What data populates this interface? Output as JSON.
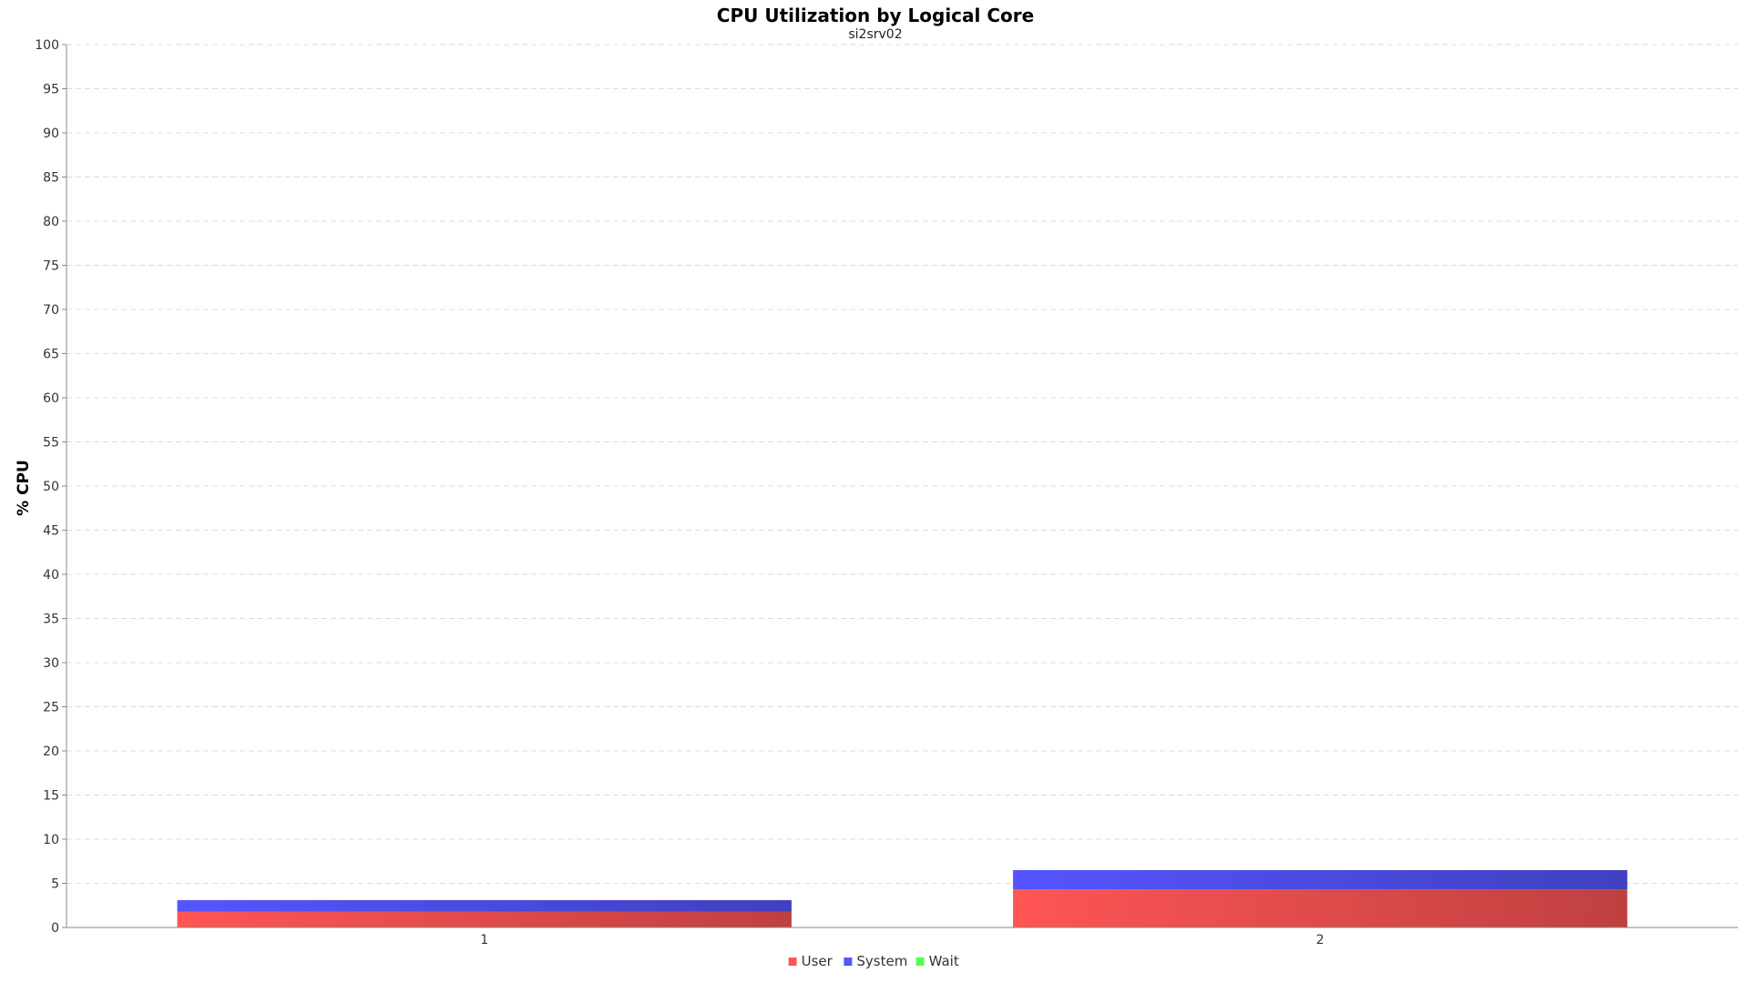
{
  "chart_data": {
    "type": "bar",
    "stacked": true,
    "title": "CPU Utilization by Logical Core",
    "subtitle": "si2srv02",
    "xlabel": "",
    "ylabel": "% CPU",
    "ylim": [
      0,
      100
    ],
    "yticks": [
      0,
      5,
      10,
      15,
      20,
      25,
      30,
      35,
      40,
      45,
      50,
      55,
      60,
      65,
      70,
      75,
      80,
      85,
      90,
      95,
      100
    ],
    "categories": [
      "1",
      "2"
    ],
    "series": [
      {
        "name": "User",
        "values": [
          1.8,
          4.3
        ],
        "color": "#ff5555"
      },
      {
        "name": "System",
        "values": [
          1.3,
          2.2
        ],
        "color": "#5555ff"
      },
      {
        "name": "Wait",
        "values": [
          0,
          0
        ],
        "color": "#55ff55"
      }
    ],
    "grid": true,
    "legend_position": "bottom-center"
  }
}
